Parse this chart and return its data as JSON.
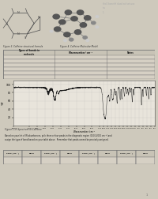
{
  "bg_color": "#cec9bc",
  "page_color": "#d6d0c4",
  "spectrum_bg": "#e8e4db",
  "table_bg": "#d6d0c4",
  "title1": "Figure 3. Caffeine structural formula",
  "title2": "Figure 4. Caffeine Molecular Model",
  "fig_caption": "Figure 1 IR Spectrum of Caffeine",
  "table1_headers": [
    "Types of bonds in\nmolecule",
    "Wavenumber/ cm⁻¹",
    "Notes"
  ],
  "table2_headers": [
    "Peak (cm⁻¹)",
    "Bond",
    "Peak (cm⁻¹)",
    "Bond",
    "Peak (cm⁻¹)",
    "Bond",
    "Peak (cm⁻¹)",
    "Bond"
  ],
  "ylabel": "%T",
  "ylim": [
    0,
    110
  ],
  "ytick_labels": [
    "20",
    "40",
    "60",
    "80",
    "100"
  ],
  "ytick_vals": [
    20,
    40,
    60,
    80,
    100
  ],
  "instruction_text": "Based on your list of IR absorbances, pick three or four peaks in the diagnostic region (1500-4000 cm⁻¹) and\nassign the type of bond based on your table above.  Remember that peaks cannot be precisely assigned.",
  "spectrum_color": "#1a1a1a",
  "table_line_color": "#777777",
  "text_color": "#1a1a1a",
  "label_color": "#222222",
  "caption_color": "#333333",
  "right_text": "tho2 bonelnl slasd sol saisvox\nins\n1.",
  "faint_text_color": "#aaaaaa",
  "page_num": "1"
}
